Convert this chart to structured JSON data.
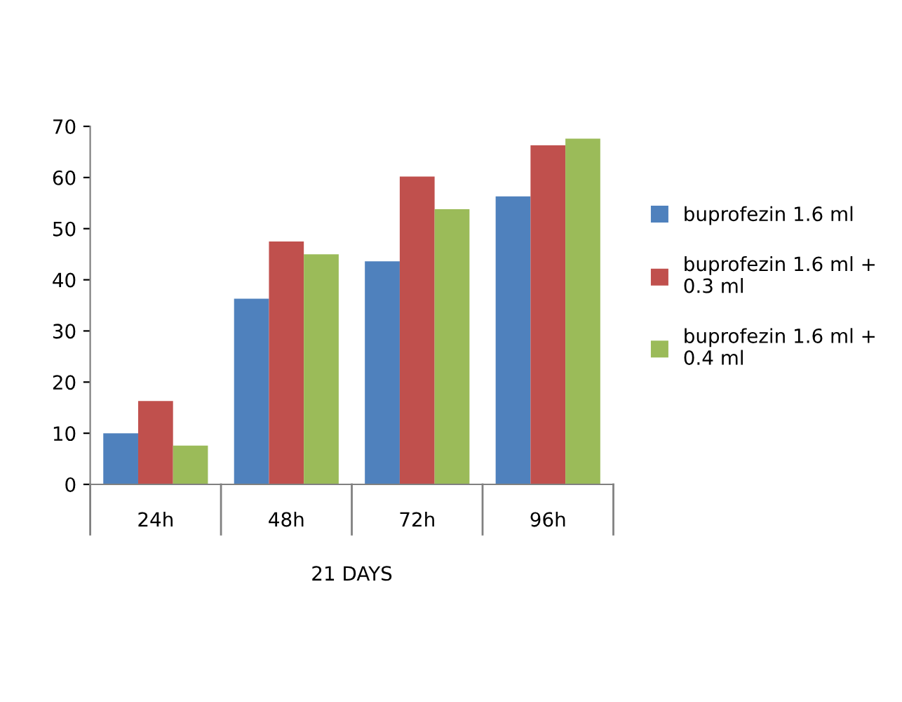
{
  "chart_data": {
    "type": "bar",
    "xlabel": "21 DAYS",
    "categories": [
      "24h",
      "48h",
      "72h",
      "96h"
    ],
    "series": [
      {
        "name": "buprofezin 1.6 ml",
        "color": "#4f81bd",
        "values": [
          10.0,
          36.3,
          43.6,
          56.3
        ]
      },
      {
        "name": "buprofezin 1.6 ml +\n0.3 ml",
        "color": "#c0504d",
        "values": [
          16.3,
          47.5,
          60.2,
          66.3
        ]
      },
      {
        "name": "buprofezin 1.6 ml +\n0.4 ml",
        "color": "#9bbb59",
        "values": [
          7.6,
          45.0,
          53.8,
          67.6
        ]
      }
    ],
    "ylim": [
      0,
      70
    ],
    "yticks": [
      0,
      10,
      20,
      30,
      40,
      50,
      60,
      70
    ],
    "grid": false,
    "legend": "right"
  }
}
